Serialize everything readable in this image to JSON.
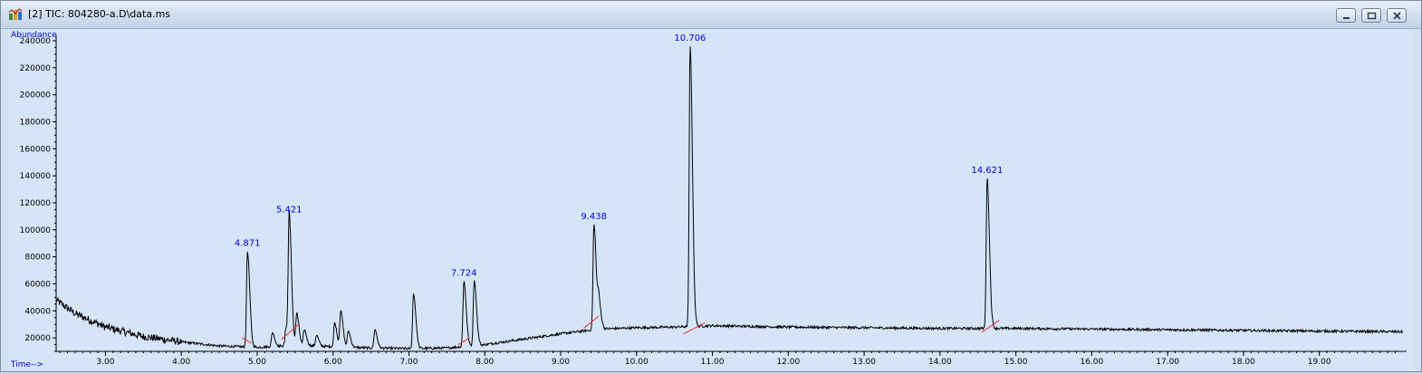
{
  "window": {
    "title": "[2] TIC: 804280-a.D\\data.ms"
  },
  "icons": {
    "app": "chromatogram-app-icon",
    "minimize": "minimize-icon",
    "maximize": "maximize-icon",
    "close": "close-icon"
  },
  "colors": {
    "trace": "#000000",
    "peak_label": "#0000dd",
    "baseline": "#e0302a",
    "axis_label": "#0000cc",
    "plot_bg": "#d6e4f8"
  },
  "chart_data": {
    "type": "line",
    "title": "",
    "xlabel": "Time-->",
    "ylabel": "Abundance",
    "xlim": [
      2.35,
      20.15
    ],
    "ylim": [
      10000,
      244000
    ],
    "x_ticks": [
      3.0,
      4.0,
      5.0,
      6.0,
      7.0,
      8.0,
      9.0,
      10.0,
      11.0,
      12.0,
      13.0,
      14.0,
      15.0,
      16.0,
      17.0,
      18.0,
      19.0
    ],
    "x_tick_labels": [
      "3.00",
      "4.00",
      "5.00",
      "6.00",
      "7.00",
      "8.00",
      "9.00",
      "10.00",
      "11.00",
      "12.00",
      "13.00",
      "14.00",
      "15.00",
      "16.00",
      "17.00",
      "18.00",
      "19.00"
    ],
    "y_ticks": [
      20000,
      40000,
      60000,
      80000,
      100000,
      120000,
      140000,
      160000,
      180000,
      200000,
      220000,
      240000
    ],
    "y_tick_labels": [
      "20000",
      "40000",
      "60000",
      "80000",
      "100000",
      "120000",
      "140000",
      "160000",
      "180000",
      "200000",
      "220000",
      "240000"
    ],
    "baseline_profile": [
      [
        2.35,
        48000
      ],
      [
        2.6,
        38000
      ],
      [
        3.0,
        28000
      ],
      [
        3.5,
        21000
      ],
      [
        4.0,
        17000
      ],
      [
        4.5,
        14000
      ],
      [
        5.0,
        13000
      ],
      [
        5.5,
        14500
      ],
      [
        6.0,
        13500
      ],
      [
        6.5,
        12500
      ],
      [
        7.0,
        12000
      ],
      [
        7.5,
        12500
      ],
      [
        8.0,
        15000
      ],
      [
        8.5,
        19000
      ],
      [
        9.0,
        23000
      ],
      [
        9.5,
        26500
      ],
      [
        10.0,
        27500
      ],
      [
        10.5,
        28000
      ],
      [
        11.0,
        29000
      ],
      [
        12.0,
        28000
      ],
      [
        13.0,
        27500
      ],
      [
        14.0,
        27000
      ],
      [
        15.0,
        27000
      ],
      [
        16.0,
        26500
      ],
      [
        17.0,
        26000
      ],
      [
        18.0,
        25500
      ],
      [
        19.0,
        25000
      ],
      [
        20.1,
        24500
      ]
    ],
    "peaks": [
      {
        "rt": 4.871,
        "height": 84000,
        "label": "4.871"
      },
      {
        "rt": 5.2,
        "height": 24000,
        "label": ""
      },
      {
        "rt": 5.38,
        "height": 28000,
        "label": ""
      },
      {
        "rt": 5.421,
        "height": 109000,
        "label": "5.421"
      },
      {
        "rt": 5.52,
        "height": 38000,
        "label": ""
      },
      {
        "rt": 5.62,
        "height": 26000,
        "label": ""
      },
      {
        "rt": 5.78,
        "height": 22000,
        "label": ""
      },
      {
        "rt": 6.02,
        "height": 31000,
        "label": ""
      },
      {
        "rt": 6.1,
        "height": 40000,
        "label": ""
      },
      {
        "rt": 6.2,
        "height": 25000,
        "label": ""
      },
      {
        "rt": 6.55,
        "height": 26000,
        "label": ""
      },
      {
        "rt": 7.06,
        "height": 53000,
        "label": ""
      },
      {
        "rt": 7.724,
        "height": 62000,
        "label": "7.724"
      },
      {
        "rt": 7.86,
        "height": 63000,
        "label": ""
      },
      {
        "rt": 9.438,
        "height": 104000,
        "label": "9.438"
      },
      {
        "rt": 9.5,
        "height": 47000,
        "label": ""
      },
      {
        "rt": 10.706,
        "height": 236000,
        "label": "10.706"
      },
      {
        "rt": 14.621,
        "height": 138000,
        "label": "14.621"
      }
    ],
    "baseline_segments": [
      [
        [
          4.8,
          20000
        ],
        [
          4.93,
          16000
        ]
      ],
      [
        [
          5.32,
          19000
        ],
        [
          5.55,
          30000
        ]
      ],
      [
        [
          7.65,
          15000
        ],
        [
          7.8,
          20000
        ]
      ],
      [
        [
          9.3,
          27000
        ],
        [
          9.5,
          36000
        ]
      ],
      [
        [
          10.62,
          23000
        ],
        [
          10.9,
          31000
        ]
      ],
      [
        [
          14.55,
          24000
        ],
        [
          14.78,
          33000
        ]
      ]
    ]
  }
}
